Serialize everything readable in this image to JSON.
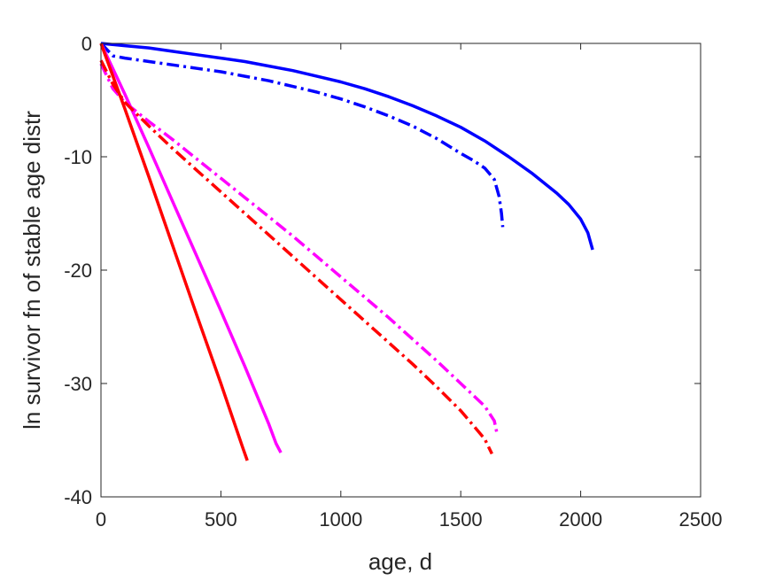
{
  "chart_data": {
    "type": "line",
    "title": "",
    "xlabel": "age, d",
    "ylabel": "ln survivor fn of stable age distr",
    "xlim": [
      0,
      2500
    ],
    "ylim": [
      -40,
      0
    ],
    "xticks": [
      0,
      500,
      1000,
      1500,
      2000,
      2500
    ],
    "yticks": [
      0,
      -10,
      -20,
      -30,
      -40
    ],
    "grid": false,
    "legend": "none",
    "series": [
      {
        "color": "#0000ff",
        "style": "solid",
        "x": [
          0,
          100,
          200,
          300,
          400,
          500,
          600,
          700,
          800,
          900,
          1000,
          1100,
          1200,
          1300,
          1400,
          1500,
          1600,
          1700,
          1800,
          1900,
          1950,
          2000,
          2030,
          2050
        ],
        "y": [
          0,
          -0.2,
          -0.4,
          -0.7,
          -1.0,
          -1.3,
          -1.6,
          -2.0,
          -2.4,
          -2.9,
          -3.4,
          -4.0,
          -4.7,
          -5.5,
          -6.4,
          -7.4,
          -8.6,
          -10.0,
          -11.5,
          -13.2,
          -14.2,
          -15.5,
          -16.7,
          -18.2
        ]
      },
      {
        "color": "#0000ff",
        "style": "dashdot",
        "x": [
          0,
          50,
          100,
          200,
          300,
          400,
          500,
          600,
          700,
          800,
          900,
          1000,
          1100,
          1200,
          1300,
          1400,
          1500,
          1550,
          1600,
          1640,
          1660,
          1670,
          1675
        ],
        "y": [
          0,
          -1.1,
          -1.3,
          -1.6,
          -1.9,
          -2.2,
          -2.5,
          -2.9,
          -3.3,
          -3.8,
          -4.3,
          -4.9,
          -5.6,
          -6.4,
          -7.3,
          -8.4,
          -9.7,
          -10.3,
          -11.0,
          -12.0,
          -13.5,
          -15.0,
          -16.2
        ]
      },
      {
        "color": "#ff00ff",
        "style": "solid",
        "x": [
          0,
          100,
          200,
          300,
          400,
          500,
          600,
          700,
          730,
          750
        ],
        "y": [
          0,
          -4.5,
          -9.2,
          -14.0,
          -18.8,
          -23.6,
          -28.5,
          -33.6,
          -35.3,
          -36.1
        ]
      },
      {
        "color": "#ff00ff",
        "style": "dashdot",
        "x": [
          0,
          50,
          100,
          200,
          300,
          400,
          500,
          600,
          700,
          800,
          900,
          1000,
          1100,
          1200,
          1300,
          1400,
          1500,
          1600,
          1640,
          1650
        ],
        "y": [
          -1.8,
          -4.0,
          -5.2,
          -6.9,
          -8.5,
          -10.2,
          -11.9,
          -13.6,
          -15.3,
          -17.0,
          -18.8,
          -20.6,
          -22.4,
          -24.2,
          -26.1,
          -28.0,
          -30.0,
          -32.0,
          -33.3,
          -34.3
        ]
      },
      {
        "color": "#ff0000",
        "style": "solid",
        "x": [
          0,
          100,
          200,
          300,
          400,
          500,
          590,
          610
        ],
        "y": [
          0,
          -5.8,
          -11.8,
          -17.9,
          -24.0,
          -30.0,
          -35.6,
          -36.8
        ]
      },
      {
        "color": "#ff0000",
        "style": "dashdot",
        "x": [
          0,
          50,
          100,
          200,
          300,
          400,
          500,
          600,
          700,
          800,
          900,
          1000,
          1100,
          1200,
          1300,
          1400,
          1500,
          1600,
          1630
        ],
        "y": [
          -1.5,
          -3.6,
          -5.2,
          -7.3,
          -9.3,
          -11.2,
          -13.1,
          -15.0,
          -16.9,
          -18.8,
          -20.7,
          -22.6,
          -24.5,
          -26.4,
          -28.3,
          -30.3,
          -32.4,
          -34.9,
          -36.2
        ]
      }
    ]
  }
}
